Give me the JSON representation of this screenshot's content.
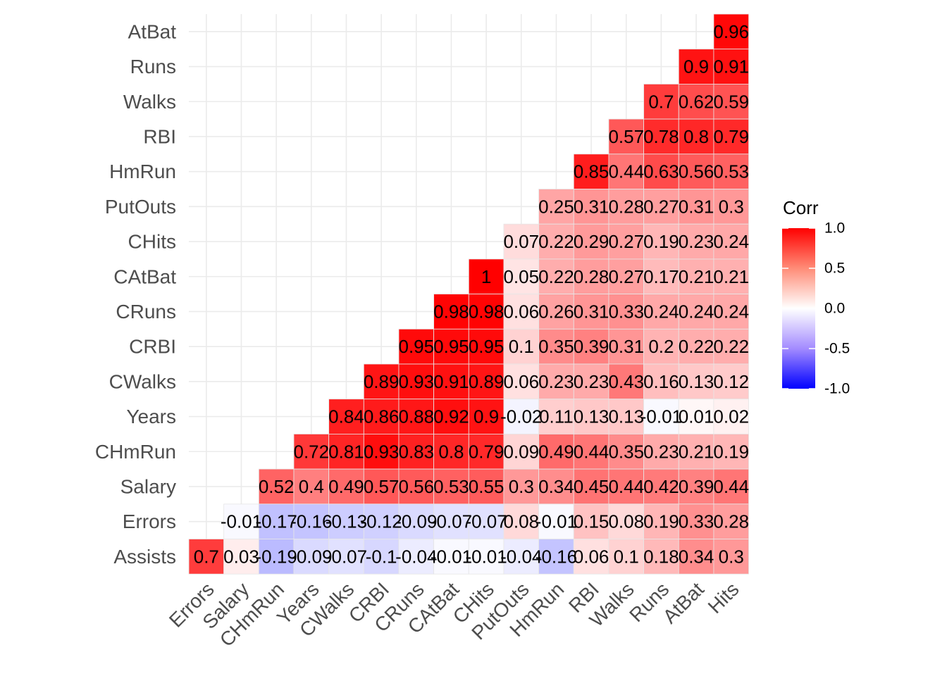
{
  "chart_data": {
    "type": "heatmap",
    "x_categories": [
      "Errors",
      "Salary",
      "CHmRun",
      "Years",
      "CWalks",
      "CRBI",
      "CRuns",
      "CAtBat",
      "CHits",
      "PutOuts",
      "HmRun",
      "RBI",
      "Walks",
      "Runs",
      "AtBat",
      "Hits"
    ],
    "y_categories": [
      "Assists",
      "Errors",
      "Salary",
      "CHmRun",
      "Years",
      "CWalks",
      "CRBI",
      "CRuns",
      "CAtBat",
      "CHits",
      "PutOuts",
      "HmRun",
      "RBI",
      "Walks",
      "Runs",
      "AtBat"
    ],
    "rows": [
      {
        "y": "AtBat",
        "values": [
          null,
          null,
          null,
          null,
          null,
          null,
          null,
          null,
          null,
          null,
          null,
          null,
          null,
          null,
          null,
          0.96
        ],
        "labels": [
          "",
          "",
          "",
          "",
          "",
          "",
          "",
          "",
          "",
          "",
          "",
          "",
          "",
          "",
          "",
          "0.96"
        ]
      },
      {
        "y": "Runs",
        "values": [
          null,
          null,
          null,
          null,
          null,
          null,
          null,
          null,
          null,
          null,
          null,
          null,
          null,
          null,
          0.9,
          0.91
        ],
        "labels": [
          "",
          "",
          "",
          "",
          "",
          "",
          "",
          "",
          "",
          "",
          "",
          "",
          "",
          "",
          "0.9",
          "0.91"
        ]
      },
      {
        "y": "Walks",
        "values": [
          null,
          null,
          null,
          null,
          null,
          null,
          null,
          null,
          null,
          null,
          null,
          null,
          null,
          0.7,
          0.62,
          0.59
        ],
        "labels": [
          "",
          "",
          "",
          "",
          "",
          "",
          "",
          "",
          "",
          "",
          "",
          "",
          "",
          "0.7",
          "0.62",
          "0.59"
        ]
      },
      {
        "y": "RBI",
        "values": [
          null,
          null,
          null,
          null,
          null,
          null,
          null,
          null,
          null,
          null,
          null,
          null,
          0.57,
          0.78,
          0.8,
          0.79
        ],
        "labels": [
          "",
          "",
          "",
          "",
          "",
          "",
          "",
          "",
          "",
          "",
          "",
          "",
          "0.57",
          "0.78",
          "0.8",
          "0.79"
        ]
      },
      {
        "y": "HmRun",
        "values": [
          null,
          null,
          null,
          null,
          null,
          null,
          null,
          null,
          null,
          null,
          null,
          0.85,
          0.44,
          0.63,
          0.56,
          0.53
        ],
        "labels": [
          "",
          "",
          "",
          "",
          "",
          "",
          "",
          "",
          "",
          "",
          "",
          "0.85",
          "0.44",
          "0.63",
          "0.56",
          "0.53"
        ]
      },
      {
        "y": "PutOuts",
        "values": [
          null,
          null,
          null,
          null,
          null,
          null,
          null,
          null,
          null,
          null,
          0.25,
          0.31,
          0.28,
          0.27,
          0.31,
          0.3
        ],
        "labels": [
          "",
          "",
          "",
          "",
          "",
          "",
          "",
          "",
          "",
          "",
          "0.25",
          "0.31",
          "0.28",
          "0.27",
          "0.31",
          "0.3"
        ]
      },
      {
        "y": "CHits",
        "values": [
          null,
          null,
          null,
          null,
          null,
          null,
          null,
          null,
          null,
          0.07,
          0.22,
          0.29,
          0.27,
          0.19,
          0.23,
          0.24
        ],
        "labels": [
          "",
          "",
          "",
          "",
          "",
          "",
          "",
          "",
          "",
          "0.07",
          "0.22",
          "0.29",
          "0.27",
          "0.19",
          "0.23",
          "0.24"
        ]
      },
      {
        "y": "CAtBat",
        "values": [
          null,
          null,
          null,
          null,
          null,
          null,
          null,
          null,
          1,
          0.05,
          0.22,
          0.28,
          0.27,
          0.17,
          0.21,
          0.21
        ],
        "labels": [
          "",
          "",
          "",
          "",
          "",
          "",
          "",
          "",
          "1",
          "0.05",
          "0.22",
          "0.28",
          "0.27",
          "0.17",
          "0.21",
          "0.21"
        ]
      },
      {
        "y": "CRuns",
        "values": [
          null,
          null,
          null,
          null,
          null,
          null,
          null,
          0.98,
          0.98,
          0.06,
          0.26,
          0.31,
          0.33,
          0.24,
          0.24,
          0.24
        ],
        "labels": [
          "",
          "",
          "",
          "",
          "",
          "",
          "",
          "0.98",
          "0.98",
          "0.06",
          "0.26",
          "0.31",
          "0.33",
          "0.24",
          "0.24",
          "0.24"
        ]
      },
      {
        "y": "CRBI",
        "values": [
          null,
          null,
          null,
          null,
          null,
          null,
          0.95,
          0.95,
          0.95,
          0.1,
          0.35,
          0.39,
          0.31,
          0.2,
          0.22,
          0.22
        ],
        "labels": [
          "",
          "",
          "",
          "",
          "",
          "",
          "0.95",
          "0.95",
          "0.95",
          "0.1",
          "0.35",
          "0.39",
          "0.31",
          "0.2",
          "0.22",
          "0.22"
        ]
      },
      {
        "y": "CWalks",
        "values": [
          null,
          null,
          null,
          null,
          null,
          0.89,
          0.93,
          0.91,
          0.89,
          0.06,
          0.23,
          0.23,
          0.43,
          0.16,
          0.13,
          0.12
        ],
        "labels": [
          "",
          "",
          "",
          "",
          "",
          "0.89",
          "0.93",
          "0.91",
          "0.89",
          "0.06",
          "0.23",
          "0.23",
          "0.43",
          "0.16",
          "0.13",
          "0.12"
        ]
      },
      {
        "y": "Years",
        "values": [
          null,
          null,
          null,
          null,
          0.84,
          0.86,
          0.88,
          0.92,
          0.9,
          -0.02,
          0.11,
          0.13,
          0.13,
          -0.01,
          0.01,
          0.02
        ],
        "labels": [
          "",
          "",
          "",
          "",
          "0.84",
          "0.86",
          "0.88",
          "0.92",
          "0.9",
          "-0.02",
          "0.11",
          "0.13",
          "0.13",
          "-0.01",
          "0.01",
          "0.02"
        ]
      },
      {
        "y": "CHmRun",
        "values": [
          null,
          null,
          null,
          0.72,
          0.81,
          0.93,
          0.83,
          0.8,
          0.79,
          0.09,
          0.49,
          0.44,
          0.35,
          0.23,
          0.21,
          0.19
        ],
        "labels": [
          "",
          "",
          "",
          "0.72",
          "0.81",
          "0.93",
          "0.83",
          "0.8",
          "0.79",
          "0.09",
          "0.49",
          "0.44",
          "0.35",
          "0.23",
          "0.21",
          "0.19"
        ]
      },
      {
        "y": "Salary",
        "values": [
          null,
          null,
          0.52,
          0.4,
          0.49,
          0.57,
          0.56,
          0.53,
          0.55,
          0.3,
          0.34,
          0.45,
          0.44,
          0.42,
          0.39,
          0.44
        ],
        "labels": [
          "",
          "",
          "0.52",
          "0.4",
          "0.49",
          "0.57",
          "0.56",
          "0.53",
          "0.55",
          "0.3",
          "0.34",
          "0.45",
          "0.44",
          "0.42",
          "0.39",
          "0.44"
        ]
      },
      {
        "y": "Errors",
        "values": [
          null,
          -0.01,
          -0.17,
          -0.16,
          -0.13,
          -0.12,
          -0.09,
          -0.07,
          -0.07,
          0.08,
          -0.01,
          0.15,
          0.08,
          0.19,
          0.33,
          0.28
        ],
        "labels": [
          "",
          "-0.01",
          "-0.17",
          "-0.16",
          "-0.13",
          "-0.12",
          "-0.09",
          "-0.07",
          "-0.07",
          "0.08",
          "-0.01",
          "0.15",
          "0.08",
          "0.19",
          "0.33",
          "0.28"
        ]
      },
      {
        "y": "Assists",
        "values": [
          0.7,
          0.03,
          -0.19,
          -0.09,
          -0.07,
          -0.1,
          -0.04,
          -0.01,
          -0.01,
          -0.04,
          -0.16,
          0.06,
          0.1,
          0.18,
          0.34,
          0.3
        ],
        "labels": [
          "0.7",
          "0.03",
          "-0.19",
          "-0.09",
          "-0.07",
          "-0.1",
          "-0.04",
          "-0.01",
          "-0.01",
          "-0.04",
          "-0.16",
          "0.06",
          "0.1",
          "0.18",
          "0.34",
          "0.3"
        ]
      }
    ],
    "legend": {
      "title": "Corr",
      "ticks": [
        1.0,
        0.5,
        0.0,
        -0.5,
        -1.0
      ],
      "tick_labels": [
        "1.0",
        "0.5",
        "0.0",
        "-0.5",
        "-1.0"
      ],
      "placement": "right",
      "colors": {
        "low": "#0000FF",
        "mid": "#FFFFFF",
        "high": "#FF0000"
      }
    },
    "value_range": [
      -1,
      1
    ],
    "grid": true
  }
}
